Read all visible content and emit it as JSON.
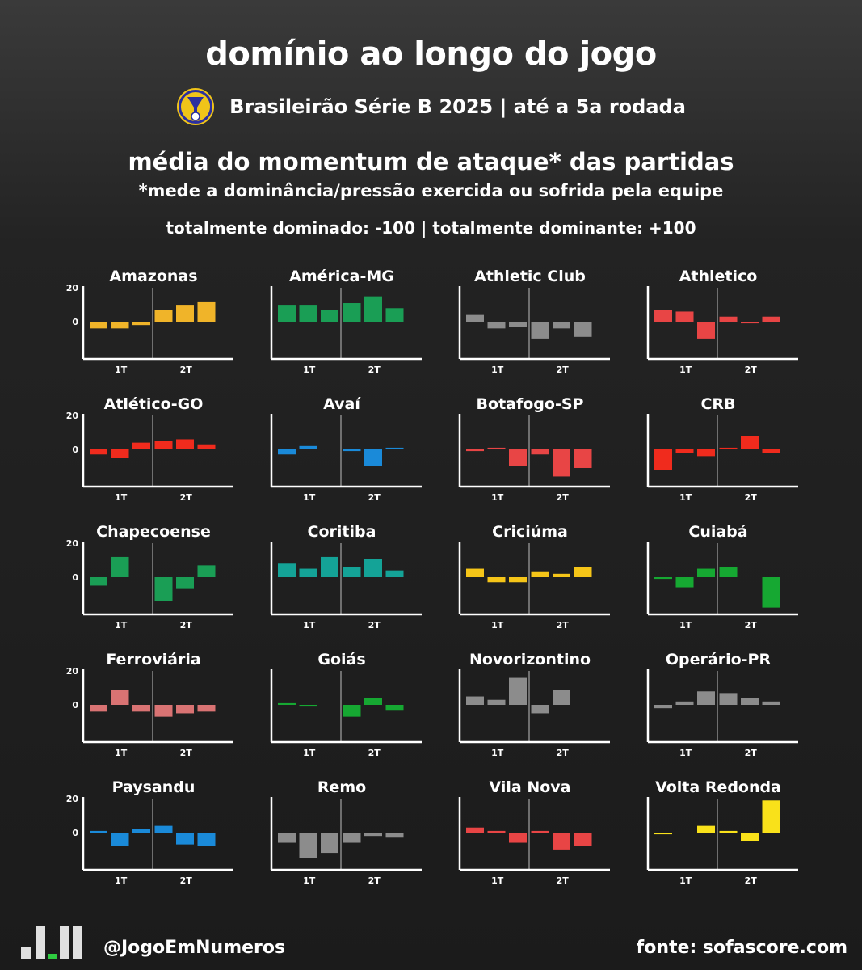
{
  "header": {
    "title": "domínio ao longo do jogo",
    "subtitle": "Brasileirão Série B 2025 | até a 5a rodada",
    "metric_title": "média do momentum de ataque* das partidas",
    "metric_note": "*mede a dominância/pressão exercida ou sofrida pela equipe",
    "scale_note": "totalmente dominado: -100 | totalmente dominante: +100"
  },
  "footer": {
    "handle": "@JogoEmNumeros",
    "source": "fonte: sofascore.com"
  },
  "chart_data": {
    "type": "bar",
    "categories": [
      "1T-1",
      "1T-2",
      "1T-3",
      "2T-1",
      "2T-2",
      "2T-3"
    ],
    "x_tick_labels": [
      "1T",
      "2T"
    ],
    "y_tick_labels": [
      "20",
      "0"
    ],
    "ylim": [
      -20,
      20
    ],
    "panels": [
      {
        "name": "Amazonas",
        "color": "#f0b429",
        "values": [
          -4,
          -4,
          -2,
          7,
          10,
          12
        ]
      },
      {
        "name": "América-MG",
        "color": "#1a9e55",
        "values": [
          10,
          10,
          7,
          11,
          15,
          8
        ]
      },
      {
        "name": "Athletic Club",
        "color": "#8c8c8c",
        "values": [
          4,
          -4,
          -3,
          -10,
          -4,
          -9
        ]
      },
      {
        "name": "Athletico",
        "color": "#e84545",
        "values": [
          7,
          6,
          -10,
          3,
          -1,
          3
        ]
      },
      {
        "name": "Atlético-GO",
        "color": "#f02b1d",
        "values": [
          -3,
          -5,
          4,
          5,
          6,
          3
        ]
      },
      {
        "name": "Avaí",
        "color": "#1a8ad9",
        "values": [
          -3,
          2,
          0,
          -1,
          -10,
          1
        ]
      },
      {
        "name": "Botafogo-SP",
        "color": "#e84545",
        "values": [
          -1,
          1,
          -10,
          -3,
          -16,
          -11
        ]
      },
      {
        "name": "CRB",
        "color": "#f02b1d",
        "values": [
          -12,
          -2,
          -4,
          1,
          8,
          -2
        ]
      },
      {
        "name": "Chapecoense",
        "color": "#1a9e55",
        "values": [
          -5,
          12,
          0,
          -14,
          -7,
          7
        ]
      },
      {
        "name": "Coritiba",
        "color": "#14a397",
        "values": [
          8,
          5,
          12,
          6,
          11,
          4
        ]
      },
      {
        "name": "Criciúma",
        "color": "#f5c518",
        "values": [
          5,
          -3,
          -3,
          3,
          2,
          6
        ]
      },
      {
        "name": "Cuiabá",
        "color": "#16a832",
        "values": [
          -1,
          -6,
          5,
          6,
          0,
          -18
        ]
      },
      {
        "name": "Ferroviária",
        "color": "#d97373",
        "values": [
          -4,
          9,
          -4,
          -7,
          -5,
          -4
        ]
      },
      {
        "name": "Goiás",
        "color": "#16a832",
        "values": [
          1,
          -1,
          0,
          -7,
          4,
          -3
        ]
      },
      {
        "name": "Novorizontino",
        "color": "#8c8c8c",
        "values": [
          5,
          3,
          16,
          -5,
          9,
          0
        ]
      },
      {
        "name": "Operário-PR",
        "color": "#8c8c8c",
        "values": [
          -2,
          2,
          8,
          7,
          4,
          2
        ]
      },
      {
        "name": "Paysandu",
        "color": "#1a8ad9",
        "values": [
          1,
          -8,
          2,
          4,
          -7,
          -8
        ]
      },
      {
        "name": "Remo",
        "color": "#8c8c8c",
        "values": [
          -6,
          -15,
          -12,
          -6,
          -2,
          -3
        ]
      },
      {
        "name": "Vila Nova",
        "color": "#e84545",
        "values": [
          3,
          1,
          -6,
          1,
          -10,
          -8
        ]
      },
      {
        "name": "Volta Redonda",
        "color": "#f9e11a",
        "values": [
          -1,
          0,
          4,
          1,
          -5,
          19
        ]
      }
    ]
  }
}
